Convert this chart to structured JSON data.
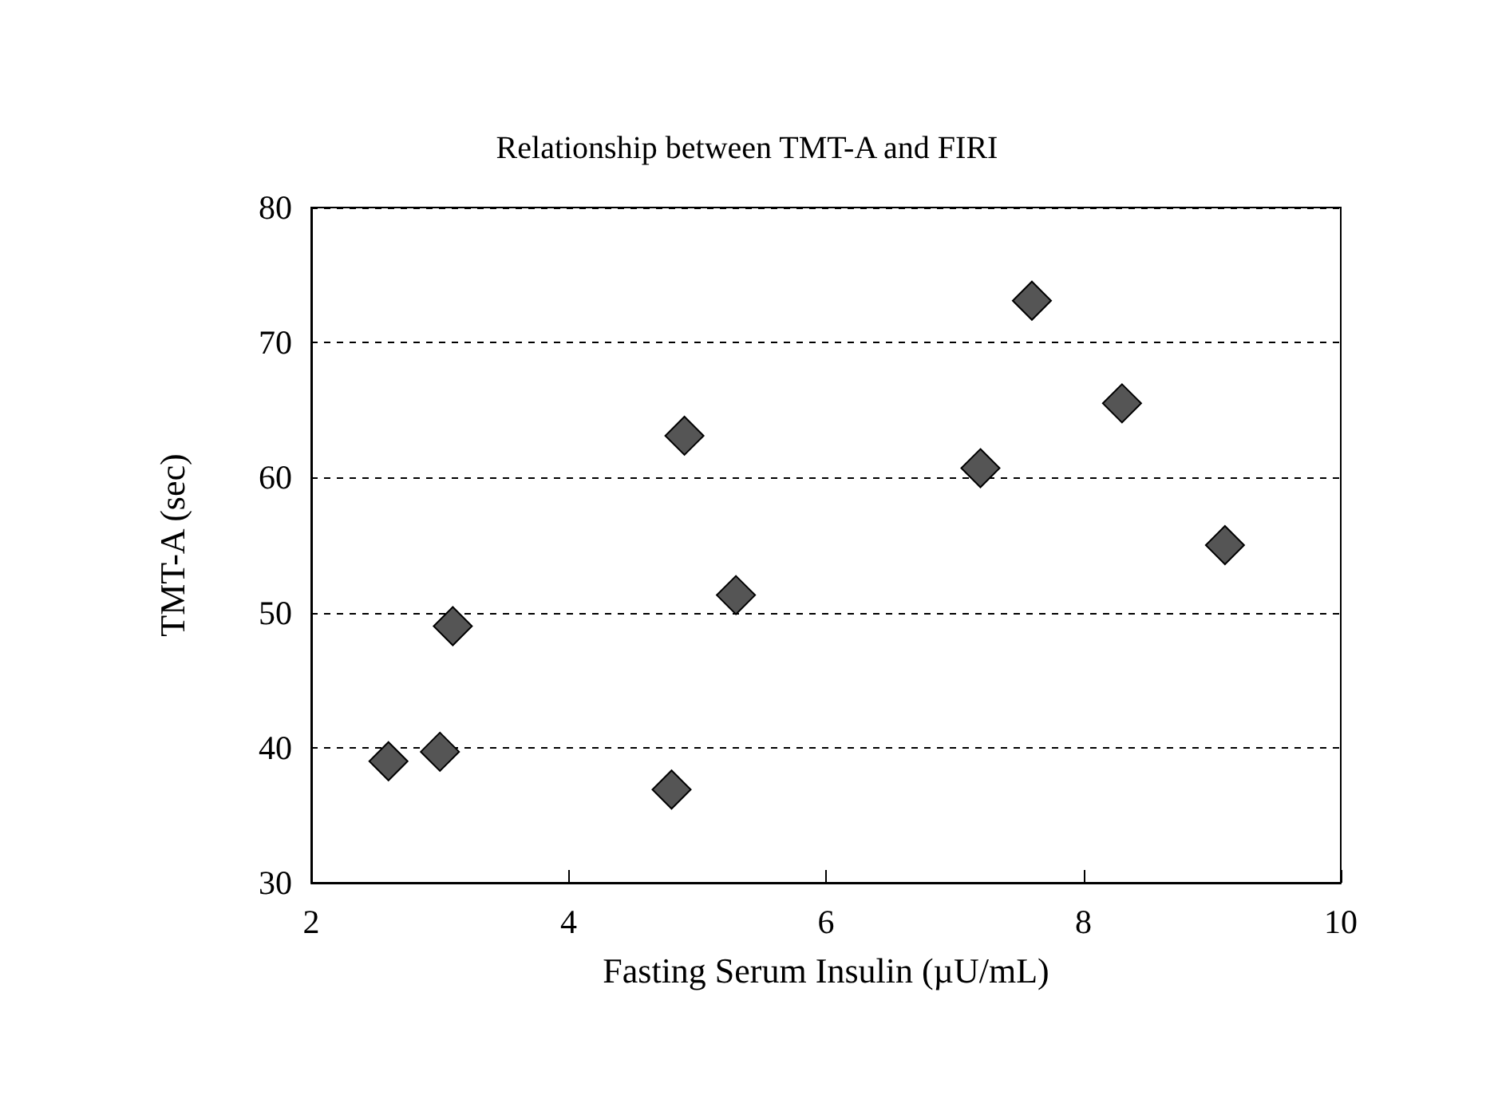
{
  "chart_data": {
    "type": "scatter",
    "title": "Relationship between TMT-A and FIRI",
    "xlabel": "Fasting Serum Insulin (µU/mL)",
    "ylabel": "TMT-A (sec)",
    "x": [
      2.6,
      3.0,
      3.1,
      4.8,
      4.9,
      5.3,
      7.2,
      7.6,
      8.3,
      9.1
    ],
    "series": [
      {
        "color": "#555555",
        "values": [
          39.0,
          39.7,
          49.0,
          36.9,
          63.1,
          51.3,
          60.7,
          73.1,
          65.5,
          55.0
        ]
      }
    ],
    "xlim": [
      2,
      10
    ],
    "xticks": [
      2,
      4,
      6,
      8,
      10
    ],
    "ylim": [
      30,
      80
    ],
    "yticks": [
      30,
      40,
      50,
      60,
      70,
      80
    ],
    "grid": "y",
    "marker": "diamond"
  }
}
